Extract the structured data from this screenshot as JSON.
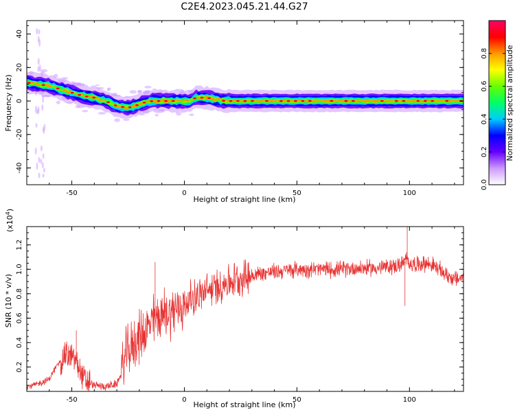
{
  "figure_title": "C2E4.2023.045.21.44.G27",
  "chart_data": [
    {
      "type": "heatmap",
      "xlabel": "Height of straight line (km)",
      "ylabel": "Frequency (Hz)",
      "xlim": [
        -70,
        124
      ],
      "ylim": [
        -50,
        48
      ],
      "x_ticks": [
        -50,
        0,
        50,
        100
      ],
      "x_tick_labels": [
        "-50",
        "0",
        "50",
        "100"
      ],
      "y_ticks": [
        -40,
        -20,
        0,
        20,
        40
      ],
      "y_tick_labels": [
        "-40",
        "-20",
        "0",
        "20",
        "40"
      ],
      "ridge": {
        "x": [
          -70,
          -65,
          -60,
          -55,
          -50,
          -45,
          -40,
          -35,
          -30,
          -25,
          -22,
          -18,
          -14,
          -10,
          -5,
          0,
          3,
          5,
          10,
          14,
          18,
          25,
          50,
          75,
          100,
          124
        ],
        "frequency": [
          11,
          10,
          9,
          7,
          5,
          3,
          2,
          0,
          -3,
          -4,
          -3,
          -1,
          0,
          0,
          0,
          0,
          0,
          2,
          2,
          1,
          0,
          0,
          0,
          0,
          0,
          0
        ]
      },
      "colorbar": {
        "label": "Normalized spectral amplitude",
        "range": [
          0,
          1
        ],
        "ticks": [
          0.0,
          0.2,
          0.4,
          0.6,
          0.8
        ],
        "tick_labels": [
          "0.0",
          "0.2",
          "0.4",
          "0.6",
          "0.8"
        ],
        "colormap": [
          "#ffffff",
          "#cc99ff",
          "#6600ff",
          "#0000ff",
          "#00ccff",
          "#00ff66",
          "#66ff00",
          "#ffff00",
          "#ff9900",
          "#ff0000",
          "#ff0066"
        ]
      },
      "grid": false
    },
    {
      "type": "line",
      "xlabel": "Height of straight line (km)",
      "ylabel": "SNR (10 * v/v)",
      "y_multiplier": "(x10",
      "y_multiplier_exp": "4",
      "y_multiplier_close": ")",
      "xlim": [
        -70,
        124
      ],
      "ylim": [
        0,
        1.35
      ],
      "x_ticks": [
        -50,
        0,
        50,
        100
      ],
      "x_tick_labels": [
        "-50",
        "0",
        "50",
        "100"
      ],
      "y_ticks": [
        0.2,
        0.4,
        0.6,
        0.8,
        1.0,
        1.2
      ],
      "y_tick_labels": [
        "0.2",
        "0.4",
        "0.6",
        "0.8",
        "1.0",
        "1.2"
      ],
      "color": "#e83232",
      "series": [
        {
          "x": [
            -70,
            -65,
            -60,
            -57,
            -53,
            -50,
            -48,
            -46,
            -44,
            -40,
            -35,
            -30,
            -28,
            -26,
            -24,
            -22,
            -20,
            -17,
            -15,
            -13,
            -10,
            -7,
            -5,
            -3,
            0,
            3,
            5,
            8,
            10,
            15,
            20,
            25,
            30,
            35,
            40,
            45,
            50,
            55,
            60,
            65,
            70,
            75,
            80,
            85,
            90,
            95,
            97,
            99,
            100,
            103,
            106,
            110,
            113,
            116,
            120,
            124
          ],
          "y": [
            0.04,
            0.06,
            0.1,
            0.2,
            0.3,
            0.28,
            0.25,
            0.15,
            0.08,
            0.05,
            0.04,
            0.06,
            0.15,
            0.3,
            0.35,
            0.4,
            0.45,
            0.5,
            0.55,
            0.6,
            0.62,
            0.65,
            0.66,
            0.68,
            0.7,
            0.76,
            0.78,
            0.8,
            0.82,
            0.86,
            0.9,
            0.93,
            0.95,
            0.97,
            0.98,
            0.99,
            1.0,
            1.0,
            1.0,
            1.0,
            1.0,
            1.01,
            1.01,
            1.01,
            1.02,
            1.03,
            1.05,
            1.08,
            1.05,
            1.04,
            1.05,
            1.04,
            1.0,
            0.96,
            0.92,
            0.93
          ]
        }
      ],
      "annotations": [
        {
          "x": -48,
          "y": 0.5
        },
        {
          "x": -13,
          "y": 1.06
        },
        {
          "x": 99,
          "y": 1.36
        },
        {
          "x": 98,
          "y": 0.7
        }
      ],
      "grid": false
    }
  ]
}
